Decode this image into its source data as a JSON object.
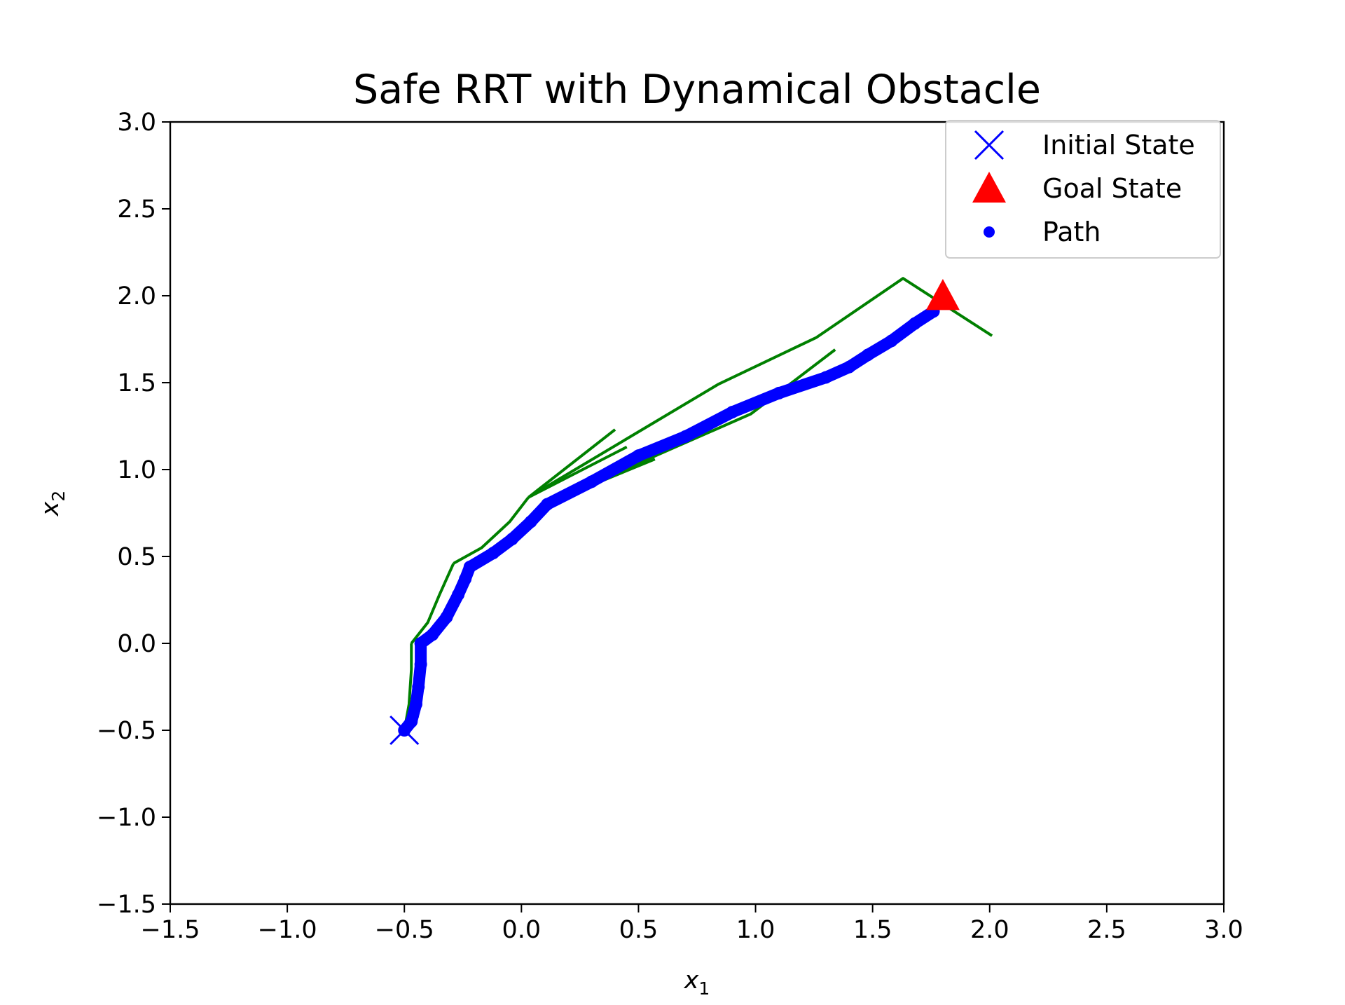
{
  "chart_data": {
    "type": "line",
    "title": "Safe RRT with Dynamical Obstacle",
    "xlabel": "x",
    "xlabel_sub": "1",
    "ylabel": "x",
    "ylabel_sub": "2",
    "xlim": [
      -1.5,
      3.0
    ],
    "ylim": [
      -1.5,
      3.0
    ],
    "xticks": [
      -1.5,
      -1.0,
      -0.5,
      0.0,
      0.5,
      1.0,
      1.5,
      2.0,
      2.5,
      3.0
    ],
    "yticks": [
      -1.5,
      -1.0,
      -0.5,
      0.0,
      0.5,
      1.0,
      1.5,
      2.0,
      2.5,
      3.0
    ],
    "xtick_labels": [
      "−1.5",
      "−1.0",
      "−0.5",
      "0.0",
      "0.5",
      "1.0",
      "1.5",
      "2.0",
      "2.5",
      "3.0"
    ],
    "ytick_labels": [
      "−1.5",
      "−1.0",
      "−0.5",
      "0.0",
      "0.5",
      "1.0",
      "1.5",
      "2.0",
      "2.5",
      "3.0"
    ],
    "grid": false,
    "legend_position": "top-right",
    "colors": {
      "tree": "#008000",
      "path": "#0000ff",
      "initial": "#0000ff",
      "goal": "#ff0000"
    },
    "tree_branches": [
      [
        [
          -0.5,
          -0.5
        ],
        [
          -0.48,
          -0.35
        ],
        [
          -0.47,
          -0.15
        ],
        [
          -0.47,
          0.0
        ]
      ],
      [
        [
          -0.47,
          0.0
        ],
        [
          -0.4,
          0.12
        ],
        [
          -0.35,
          0.28
        ],
        [
          -0.29,
          0.46
        ]
      ],
      [
        [
          -0.29,
          0.46
        ],
        [
          -0.17,
          0.55
        ],
        [
          -0.05,
          0.7
        ],
        [
          0.03,
          0.84
        ]
      ],
      [
        [
          0.03,
          0.84
        ],
        [
          0.4,
          1.23
        ]
      ],
      [
        [
          0.03,
          0.84
        ],
        [
          0.45,
          1.13
        ]
      ],
      [
        [
          0.03,
          0.84
        ],
        [
          0.84,
          1.49
        ],
        [
          1.26,
          1.76
        ],
        [
          1.63,
          2.1
        ],
        [
          2.01,
          1.77
        ]
      ],
      [
        [
          0.1,
          0.8
        ],
        [
          0.57,
          1.06
        ]
      ],
      [
        [
          0.1,
          0.8
        ],
        [
          0.98,
          1.32
        ],
        [
          1.34,
          1.69
        ]
      ]
    ],
    "path": [
      [
        -0.5,
        -0.5
      ],
      [
        -0.47,
        -0.45
      ],
      [
        -0.45,
        -0.35
      ],
      [
        -0.44,
        -0.25
      ],
      [
        -0.43,
        -0.12
      ],
      [
        -0.43,
        0.0
      ],
      [
        -0.38,
        0.05
      ],
      [
        -0.32,
        0.15
      ],
      [
        -0.27,
        0.28
      ],
      [
        -0.24,
        0.37
      ],
      [
        -0.22,
        0.44
      ],
      [
        -0.12,
        0.52
      ],
      [
        -0.04,
        0.6
      ],
      [
        0.04,
        0.7
      ],
      [
        0.11,
        0.8
      ],
      [
        0.3,
        0.93
      ],
      [
        0.5,
        1.08
      ],
      [
        0.7,
        1.19
      ],
      [
        0.9,
        1.33
      ],
      [
        1.1,
        1.44
      ],
      [
        1.3,
        1.53
      ],
      [
        1.4,
        1.59
      ],
      [
        1.48,
        1.66
      ],
      [
        1.58,
        1.74
      ],
      [
        1.68,
        1.84
      ],
      [
        1.76,
        1.91
      ]
    ],
    "initial_state": [
      -0.5,
      -0.5
    ],
    "goal_state": [
      1.8,
      2.0
    ],
    "legend": [
      {
        "key": "initial",
        "label": "Initial State"
      },
      {
        "key": "goal",
        "label": "Goal State"
      },
      {
        "key": "path",
        "label": "Path"
      }
    ]
  }
}
